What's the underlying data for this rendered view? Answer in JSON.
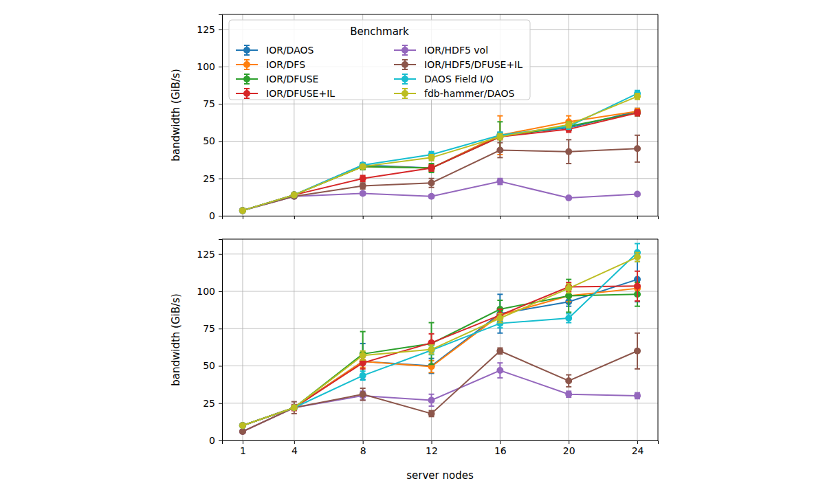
{
  "chart_data": [
    {
      "type": "line",
      "y_label": "bandwidth (GiB/s)",
      "legend_title": "Benchmark",
      "legend": "upper left",
      "grid": true,
      "marker": "circle",
      "tick_labels": "y",
      "x": [
        1,
        4,
        8,
        12,
        16,
        20,
        24
      ],
      "xlim": [
        -0.2,
        25.2
      ],
      "xticks": [
        1,
        4,
        8,
        12,
        16,
        20,
        24
      ],
      "ylim": [
        0,
        135
      ],
      "yticks": [
        0,
        25,
        50,
        75,
        100,
        125
      ],
      "series": [
        {
          "name": "IOR/DAOS",
          "color": "#1f77b4",
          "values": [
            3.5,
            14,
            34,
            32,
            54,
            59,
            70
          ],
          "errors": [
            0.3,
            0.5,
            1.5,
            2,
            2,
            2,
            2
          ]
        },
        {
          "name": "IOR/DFS",
          "color": "#ff7f0e",
          "values": [
            3.5,
            14,
            33,
            32,
            54,
            63,
            70
          ],
          "errors": [
            0.3,
            0.5,
            2,
            2,
            13,
            4,
            2
          ]
        },
        {
          "name": "IOR/DFUSE",
          "color": "#2ca02c",
          "values": [
            3.5,
            14,
            33,
            32,
            53,
            60,
            69
          ],
          "errors": [
            0.3,
            0.5,
            2,
            3,
            10,
            3,
            2
          ]
        },
        {
          "name": "IOR/DFUSE+IL",
          "color": "#d62728",
          "values": [
            3.5,
            14,
            25,
            32,
            53,
            58,
            69
          ],
          "errors": [
            0.3,
            0.5,
            2,
            2,
            2,
            2,
            2
          ]
        },
        {
          "name": "IOR/HDF5 vol",
          "color": "#9467bd",
          "values": [
            3.5,
            13,
            15,
            13,
            23,
            12,
            14.5
          ],
          "errors": [
            0.3,
            0.5,
            1,
            1,
            2,
            1,
            1
          ]
        },
        {
          "name": "IOR/HDF5/DFUSE+IL",
          "color": "#8c564b",
          "values": [
            3.5,
            13,
            20,
            22,
            44,
            43,
            45
          ],
          "errors": [
            0.3,
            1,
            2,
            3,
            5,
            8,
            9
          ]
        },
        {
          "name": "DAOS Field I/O",
          "color": "#17becf",
          "values": [
            3.5,
            14,
            34,
            41,
            54,
            60,
            82
          ],
          "errors": [
            0.3,
            0.5,
            1,
            2,
            2,
            2,
            2
          ]
        },
        {
          "name": "fdb-hammer/DAOS",
          "color": "#bcbd22",
          "values": [
            3.5,
            14,
            33,
            39,
            53,
            61,
            80
          ],
          "errors": [
            0.3,
            0.5,
            1,
            2,
            2,
            2,
            2
          ]
        }
      ]
    },
    {
      "type": "line",
      "y_label": "bandwidth (GiB/s)",
      "x_label": "server nodes",
      "grid": true,
      "marker": "circle",
      "x": [
        1,
        4,
        8,
        12,
        16,
        20,
        24
      ],
      "xlim": [
        -0.2,
        25.2
      ],
      "xticks": [
        1,
        4,
        8,
        12,
        16,
        20,
        24
      ],
      "ylim": [
        0,
        135
      ],
      "yticks": [
        0,
        25,
        50,
        75,
        100,
        125
      ],
      "series": [
        {
          "color": "#1f77b4",
          "values": [
            10,
            22,
            53,
            50,
            85,
            93,
            108
          ],
          "errors": [
            1,
            1,
            12,
            5,
            13,
            3,
            15
          ]
        },
        {
          "color": "#ff7f0e",
          "values": [
            10,
            22,
            53,
            49.5,
            84,
            97,
            102
          ],
          "errors": [
            1,
            1,
            4,
            4,
            4,
            4,
            4
          ]
        },
        {
          "color": "#2ca02c",
          "values": [
            10,
            22,
            58,
            65,
            88,
            97,
            98
          ],
          "errors": [
            1,
            1,
            15,
            14,
            6,
            11,
            8
          ]
        },
        {
          "color": "#d62728",
          "values": [
            10,
            22,
            52,
            65.5,
            84,
            103,
            103.5
          ],
          "errors": [
            1,
            2,
            4,
            6,
            4,
            3,
            10
          ]
        },
        {
          "color": "#9467bd",
          "values": [
            6,
            22,
            30,
            27,
            47,
            31,
            30
          ],
          "errors": [
            1,
            1,
            3,
            4,
            5,
            2,
            2
          ]
        },
        {
          "color": "#8c564b",
          "values": [
            6,
            22,
            31,
            18,
            60,
            40,
            60
          ],
          "errors": [
            1,
            4,
            4,
            2,
            2,
            4,
            12
          ]
        },
        {
          "color": "#17becf",
          "values": [
            10,
            22,
            43.5,
            60.5,
            78.5,
            82,
            126
          ],
          "errors": [
            1,
            1,
            3,
            3,
            3,
            3,
            6
          ]
        },
        {
          "color": "#bcbd22",
          "values": [
            10,
            22,
            57,
            61,
            82,
            102,
            123
          ],
          "errors": [
            1,
            1,
            3,
            3,
            3,
            3,
            3
          ]
        }
      ]
    }
  ]
}
